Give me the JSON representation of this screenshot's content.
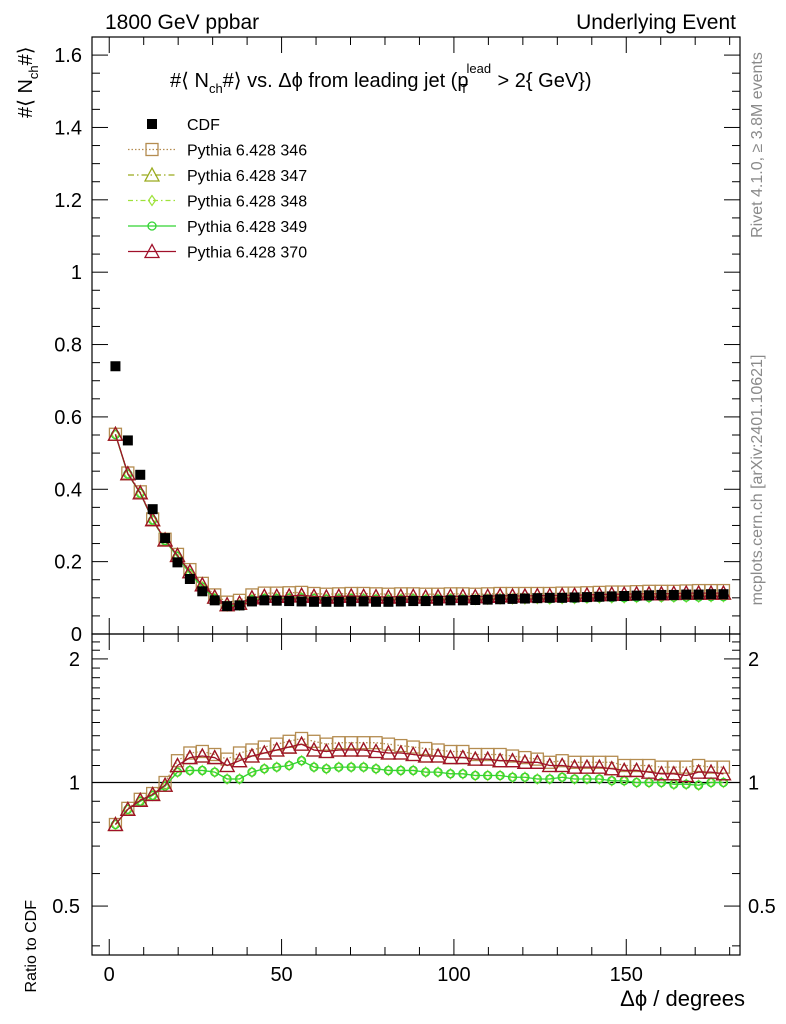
{
  "header": {
    "left": "1800 GeV ppbar",
    "right": "Underlying Event"
  },
  "side_labels": {
    "top": "Rivet 4.1.0, ≥ 3.8M events",
    "bottom": "mcplots.cern.ch [arXiv:2401.10621]"
  },
  "chart_data": [
    {
      "type": "scatter",
      "panel": "main",
      "title": "#⟨ N_ch#⟩ vs. Δϕ from leading jet (p_T^lead > 2{ GeV})",
      "ylabel": "#⟨ N_ch#⟩",
      "xlabel": "Δϕ / degrees",
      "xlim": [
        -5,
        183
      ],
      "ylim": [
        0,
        1.65
      ],
      "y_ticks": [
        "0",
        "0.2",
        "0.4",
        "0.6",
        "0.8",
        "1",
        "1.2",
        "1.4",
        "1.6"
      ],
      "x_ticks": [
        "0",
        "50",
        "100",
        "150"
      ],
      "x": [
        1.8,
        5.4,
        9.0,
        12.6,
        16.2,
        19.8,
        23.4,
        27.0,
        30.6,
        34.2,
        37.8,
        41.4,
        45.0,
        48.6,
        52.2,
        55.8,
        59.4,
        63.0,
        66.6,
        70.2,
        73.8,
        77.4,
        81.0,
        84.6,
        88.2,
        91.8,
        95.4,
        99.0,
        102.6,
        106.2,
        109.8,
        113.4,
        117.0,
        120.6,
        124.2,
        127.8,
        131.4,
        135.0,
        138.6,
        142.2,
        145.8,
        149.4,
        153.0,
        156.6,
        160.2,
        163.8,
        167.4,
        171.0,
        174.6,
        178.2
      ],
      "series": [
        {
          "name": "CDF",
          "color": "#000000",
          "marker": "filled-square",
          "values": [
            0.74,
            0.535,
            0.44,
            0.345,
            0.265,
            0.198,
            0.152,
            0.118,
            0.093,
            0.077,
            0.079,
            0.09,
            0.093,
            0.092,
            0.091,
            0.09,
            0.089,
            0.089,
            0.089,
            0.09,
            0.09,
            0.089,
            0.089,
            0.09,
            0.091,
            0.091,
            0.092,
            0.093,
            0.093,
            0.094,
            0.095,
            0.096,
            0.097,
            0.098,
            0.099,
            0.1,
            0.1,
            0.101,
            0.102,
            0.103,
            0.104,
            0.105,
            0.106,
            0.107,
            0.108,
            0.108,
            0.109,
            0.109,
            0.11,
            0.11
          ]
        },
        {
          "name": "Pythia 6.428 346",
          "color": "#b48c50",
          "marker": "open-square",
          "dash": "1.5,2",
          "values": [
            0.552,
            0.445,
            0.393,
            0.318,
            0.262,
            0.22,
            0.178,
            0.14,
            0.108,
            0.088,
            0.093,
            0.108,
            0.113,
            0.113,
            0.114,
            0.115,
            0.112,
            0.11,
            0.111,
            0.112,
            0.112,
            0.111,
            0.11,
            0.111,
            0.111,
            0.11,
            0.11,
            0.111,
            0.111,
            0.11,
            0.111,
            0.112,
            0.112,
            0.112,
            0.112,
            0.112,
            0.113,
            0.113,
            0.114,
            0.115,
            0.116,
            0.116,
            0.117,
            0.118,
            0.118,
            0.118,
            0.119,
            0.12,
            0.12,
            0.12
          ]
        },
        {
          "name": "Pythia 6.428 347",
          "color": "#9aab1e",
          "marker": "open-triangle",
          "dash": "6,3,1.5,3",
          "values": [
            0.552,
            0.443,
            0.39,
            0.316,
            0.26,
            0.217,
            0.172,
            0.136,
            0.102,
            0.081,
            0.085,
            0.1,
            0.104,
            0.104,
            0.105,
            0.107,
            0.104,
            0.102,
            0.104,
            0.105,
            0.104,
            0.103,
            0.102,
            0.104,
            0.104,
            0.102,
            0.103,
            0.104,
            0.104,
            0.103,
            0.104,
            0.106,
            0.105,
            0.105,
            0.106,
            0.106,
            0.107,
            0.107,
            0.108,
            0.109,
            0.11,
            0.11,
            0.111,
            0.111,
            0.111,
            0.112,
            0.113,
            0.113,
            0.113,
            0.113
          ]
        },
        {
          "name": "Pythia 6.428 348",
          "color": "#9ee23a",
          "marker": "open-diamond",
          "dash": "5,3,1.5,3",
          "values": [
            0.551,
            0.442,
            0.389,
            0.315,
            0.258,
            0.214,
            0.167,
            0.13,
            0.098,
            0.077,
            0.08,
            0.095,
            0.098,
            0.098,
            0.099,
            0.1,
            0.098,
            0.096,
            0.097,
            0.098,
            0.097,
            0.096,
            0.095,
            0.096,
            0.097,
            0.095,
            0.096,
            0.097,
            0.096,
            0.095,
            0.096,
            0.097,
            0.097,
            0.097,
            0.098,
            0.097,
            0.098,
            0.098,
            0.099,
            0.1,
            0.1,
            0.1,
            0.101,
            0.101,
            0.102,
            0.102,
            0.102,
            0.102,
            0.103,
            0.103
          ]
        },
        {
          "name": "Pythia 6.428 349",
          "color": "#33d433",
          "marker": "open-circle",
          "dash": "",
          "values": [
            0.551,
            0.442,
            0.389,
            0.315,
            0.258,
            0.214,
            0.167,
            0.13,
            0.098,
            0.077,
            0.08,
            0.095,
            0.098,
            0.098,
            0.099,
            0.1,
            0.098,
            0.096,
            0.097,
            0.098,
            0.097,
            0.096,
            0.095,
            0.096,
            0.097,
            0.095,
            0.096,
            0.097,
            0.096,
            0.095,
            0.096,
            0.097,
            0.097,
            0.097,
            0.098,
            0.097,
            0.098,
            0.098,
            0.099,
            0.1,
            0.1,
            0.1,
            0.101,
            0.101,
            0.102,
            0.102,
            0.102,
            0.102,
            0.103,
            0.103
          ]
        },
        {
          "name": "Pythia 6.428 370",
          "color": "#a0102a",
          "marker": "open-triangle",
          "dash": "",
          "values": [
            0.552,
            0.443,
            0.39,
            0.316,
            0.26,
            0.217,
            0.172,
            0.136,
            0.102,
            0.081,
            0.085,
            0.1,
            0.104,
            0.104,
            0.105,
            0.107,
            0.104,
            0.102,
            0.104,
            0.105,
            0.104,
            0.103,
            0.102,
            0.104,
            0.104,
            0.102,
            0.103,
            0.104,
            0.104,
            0.103,
            0.104,
            0.106,
            0.105,
            0.105,
            0.106,
            0.106,
            0.107,
            0.107,
            0.108,
            0.109,
            0.11,
            0.11,
            0.111,
            0.111,
            0.111,
            0.112,
            0.113,
            0.113,
            0.113,
            0.113
          ]
        }
      ]
    },
    {
      "type": "scatter",
      "panel": "ratio",
      "ylabel": "Ratio to CDF",
      "xlabel": "Δϕ / degrees",
      "yscale": "log",
      "ylim": [
        0.38,
        2.3
      ],
      "y_ticks": [
        "0.5",
        "1",
        "2"
      ],
      "reference_line": 1,
      "series": [
        {
          "name": "Pythia 6.428 346",
          "values": [
            0.79,
            0.865,
            0.91,
            0.94,
            1.0,
            1.13,
            1.18,
            1.19,
            1.17,
            1.14,
            1.18,
            1.2,
            1.22,
            1.24,
            1.26,
            1.28,
            1.26,
            1.24,
            1.25,
            1.25,
            1.25,
            1.25,
            1.24,
            1.23,
            1.22,
            1.21,
            1.2,
            1.19,
            1.19,
            1.17,
            1.17,
            1.17,
            1.16,
            1.15,
            1.14,
            1.12,
            1.13,
            1.12,
            1.12,
            1.12,
            1.12,
            1.1,
            1.1,
            1.1,
            1.09,
            1.09,
            1.09,
            1.1,
            1.09,
            1.09
          ]
        },
        {
          "name": "Pythia 6.428 347",
          "values": [
            0.79,
            0.86,
            0.905,
            0.935,
            0.985,
            1.1,
            1.15,
            1.16,
            1.15,
            1.1,
            1.13,
            1.16,
            1.18,
            1.2,
            1.22,
            1.24,
            1.2,
            1.19,
            1.2,
            1.2,
            1.2,
            1.19,
            1.18,
            1.18,
            1.17,
            1.16,
            1.16,
            1.15,
            1.15,
            1.14,
            1.14,
            1.13,
            1.13,
            1.12,
            1.12,
            1.1,
            1.1,
            1.09,
            1.09,
            1.09,
            1.08,
            1.07,
            1.07,
            1.06,
            1.05,
            1.05,
            1.04,
            1.06,
            1.06,
            1.05
          ]
        },
        {
          "name": "Pythia 6.428 348",
          "values": [
            0.79,
            0.86,
            0.9,
            0.93,
            0.98,
            1.06,
            1.07,
            1.07,
            1.06,
            1.02,
            1.02,
            1.06,
            1.08,
            1.09,
            1.1,
            1.13,
            1.09,
            1.08,
            1.09,
            1.09,
            1.09,
            1.08,
            1.07,
            1.07,
            1.07,
            1.06,
            1.06,
            1.05,
            1.05,
            1.04,
            1.04,
            1.04,
            1.03,
            1.03,
            1.02,
            1.02,
            1.03,
            1.02,
            1.02,
            1.02,
            1.01,
            1.01,
            1.0,
            1.0,
            1.0,
            0.99,
            0.99,
            0.985,
            1.0,
            1.0
          ]
        },
        {
          "name": "Pythia 6.428 349",
          "values": [
            0.79,
            0.86,
            0.9,
            0.93,
            0.98,
            1.06,
            1.07,
            1.07,
            1.06,
            1.02,
            1.02,
            1.06,
            1.08,
            1.09,
            1.1,
            1.13,
            1.09,
            1.08,
            1.09,
            1.09,
            1.09,
            1.08,
            1.07,
            1.07,
            1.07,
            1.06,
            1.06,
            1.05,
            1.05,
            1.04,
            1.04,
            1.04,
            1.03,
            1.03,
            1.02,
            1.02,
            1.03,
            1.02,
            1.02,
            1.02,
            1.01,
            1.01,
            1.0,
            1.0,
            1.0,
            0.99,
            0.99,
            0.985,
            1.0,
            1.0
          ]
        },
        {
          "name": "Pythia 6.428 370",
          "values": [
            0.79,
            0.86,
            0.905,
            0.935,
            0.985,
            1.1,
            1.15,
            1.16,
            1.15,
            1.1,
            1.13,
            1.16,
            1.18,
            1.2,
            1.22,
            1.24,
            1.2,
            1.19,
            1.2,
            1.2,
            1.2,
            1.19,
            1.18,
            1.18,
            1.17,
            1.16,
            1.16,
            1.15,
            1.15,
            1.14,
            1.14,
            1.13,
            1.13,
            1.12,
            1.12,
            1.1,
            1.1,
            1.09,
            1.09,
            1.09,
            1.08,
            1.07,
            1.07,
            1.06,
            1.05,
            1.05,
            1.04,
            1.06,
            1.06,
            1.05
          ]
        }
      ]
    }
  ]
}
